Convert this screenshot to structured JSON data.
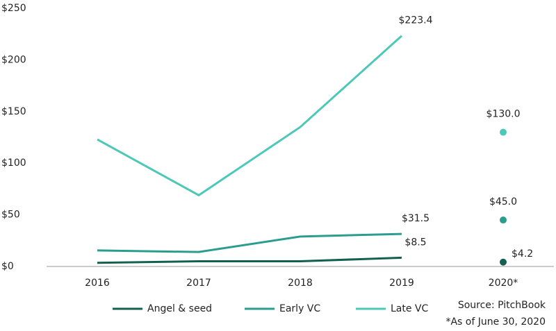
{
  "chart_data": {
    "type": "line",
    "categories": [
      "2016",
      "2017",
      "2018",
      "2019",
      "2020*"
    ],
    "series": [
      {
        "name": "Angel & seed",
        "color": "#12614f",
        "values": [
          3.5,
          5,
          5,
          8.5,
          4.2
        ],
        "value_labels": [
          null,
          null,
          null,
          "$8.5",
          "$4.2"
        ]
      },
      {
        "name": "Early VC",
        "color": "#2a9d8f",
        "values": [
          15.5,
          14,
          29,
          31.5,
          45
        ],
        "value_labels": [
          null,
          null,
          null,
          "$31.5",
          "$45.0"
        ]
      },
      {
        "name": "Late VC",
        "color": "#4cc8b8",
        "values": [
          123,
          69,
          135,
          223.4,
          130
        ],
        "value_labels": [
          null,
          null,
          null,
          "$223.4",
          "$130.0"
        ]
      }
    ],
    "ylim": [
      0,
      250
    ],
    "yticks": [
      {
        "value": 0,
        "label": "$0"
      },
      {
        "value": 50,
        "label": "$50"
      },
      {
        "value": 100,
        "label": "$100"
      },
      {
        "value": 150,
        "label": "$150"
      },
      {
        "value": 200,
        "label": "$200"
      },
      {
        "value": 250,
        "label": "$250"
      }
    ],
    "notes": [
      "Source: PitchBook",
      "*As of June 30, 2020"
    ]
  }
}
